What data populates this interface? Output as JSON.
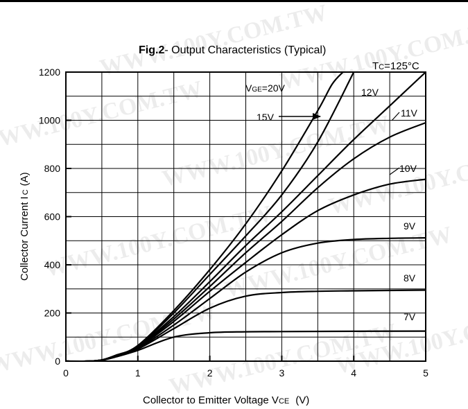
{
  "watermark": "WWW.100Y.COM.TW",
  "chart_data": {
    "type": "line",
    "title_bold": "Fig.2",
    "title_rest": "- Output Characteristics (Typical)",
    "xlabel_main": "Collector to Emitter Voltage V",
    "xlabel_sub": "CE",
    "xlabel_unit": "(V)",
    "ylabel_main": "Collector Current I",
    "ylabel_sub": "C",
    "ylabel_unit": "(A)",
    "xlim": [
      0,
      5
    ],
    "ylim": [
      0,
      1200
    ],
    "x_ticks": [
      "0",
      "1",
      "2",
      "3",
      "4",
      "5"
    ],
    "y_ticks": [
      "0",
      "200",
      "400",
      "600",
      "800",
      "1000",
      "1200"
    ],
    "grid": true,
    "annotation_main": "T",
    "annotation_sub": "C",
    "annotation_rest": "=125°C",
    "series": [
      {
        "name": "VGE=20V",
        "label_main": "V",
        "label_sub": "GE",
        "label_rest": "=20V",
        "points": [
          [
            0,
            0
          ],
          [
            0.3,
            0
          ],
          [
            0.5,
            5
          ],
          [
            0.7,
            25
          ],
          [
            1.0,
            65
          ],
          [
            1.5,
            210
          ],
          [
            2.0,
            380
          ],
          [
            2.5,
            570
          ],
          [
            3.0,
            790
          ],
          [
            3.5,
            1040
          ],
          [
            3.7,
            1150
          ],
          [
            3.85,
            1200
          ]
        ]
      },
      {
        "name": "15V",
        "label_main": "15V",
        "label_sub": "",
        "label_rest": "",
        "points": [
          [
            0,
            0
          ],
          [
            0.3,
            0
          ],
          [
            0.5,
            5
          ],
          [
            0.7,
            25
          ],
          [
            1.0,
            62
          ],
          [
            1.5,
            200
          ],
          [
            2.0,
            360
          ],
          [
            2.5,
            520
          ],
          [
            3.0,
            690
          ],
          [
            3.5,
            910
          ],
          [
            4.0,
            1200
          ]
        ]
      },
      {
        "name": "12V",
        "label_main": "12V",
        "label_sub": "",
        "label_rest": "",
        "points": [
          [
            0,
            0
          ],
          [
            0.3,
            0
          ],
          [
            0.5,
            5
          ],
          [
            0.7,
            24
          ],
          [
            1.0,
            60
          ],
          [
            1.5,
            185
          ],
          [
            2.0,
            330
          ],
          [
            2.5,
            480
          ],
          [
            3.0,
            620
          ],
          [
            3.5,
            770
          ],
          [
            4.0,
            920
          ],
          [
            4.5,
            1060
          ],
          [
            5.0,
            1200
          ]
        ]
      },
      {
        "name": "11V",
        "label_main": "11V",
        "label_sub": "",
        "label_rest": "",
        "points": [
          [
            0,
            0
          ],
          [
            0.3,
            0
          ],
          [
            0.5,
            5
          ],
          [
            0.7,
            23
          ],
          [
            1.0,
            58
          ],
          [
            1.5,
            175
          ],
          [
            2.0,
            310
          ],
          [
            2.5,
            450
          ],
          [
            3.0,
            580
          ],
          [
            3.5,
            720
          ],
          [
            4.0,
            840
          ],
          [
            4.5,
            930
          ],
          [
            5.0,
            990
          ]
        ]
      },
      {
        "name": "10V",
        "label_main": "10V",
        "label_sub": "",
        "label_rest": "",
        "points": [
          [
            0,
            0
          ],
          [
            0.3,
            0
          ],
          [
            0.5,
            5
          ],
          [
            0.7,
            22
          ],
          [
            1.0,
            56
          ],
          [
            1.5,
            165
          ],
          [
            2.0,
            290
          ],
          [
            2.5,
            410
          ],
          [
            3.0,
            525
          ],
          [
            3.5,
            625
          ],
          [
            4.0,
            690
          ],
          [
            4.5,
            735
          ],
          [
            5.0,
            755
          ]
        ]
      },
      {
        "name": "9V",
        "label_main": "9V",
        "label_sub": "",
        "label_rest": "",
        "points": [
          [
            0,
            0
          ],
          [
            0.3,
            0
          ],
          [
            0.5,
            5
          ],
          [
            0.7,
            21
          ],
          [
            1.0,
            53
          ],
          [
            1.5,
            150
          ],
          [
            2.0,
            260
          ],
          [
            2.5,
            370
          ],
          [
            3.0,
            450
          ],
          [
            3.5,
            490
          ],
          [
            4.0,
            505
          ],
          [
            4.5,
            510
          ],
          [
            5.0,
            512
          ]
        ]
      },
      {
        "name": "8V",
        "label_main": "8V",
        "label_sub": "",
        "label_rest": "",
        "points": [
          [
            0,
            0
          ],
          [
            0.3,
            0
          ],
          [
            0.5,
            5
          ],
          [
            0.7,
            20
          ],
          [
            1.0,
            50
          ],
          [
            1.5,
            135
          ],
          [
            2.0,
            220
          ],
          [
            2.5,
            270
          ],
          [
            3.0,
            285
          ],
          [
            3.5,
            290
          ],
          [
            4.0,
            292
          ],
          [
            5.0,
            295
          ]
        ]
      },
      {
        "name": "7V",
        "label_main": "7V",
        "label_sub": "",
        "label_rest": "",
        "points": [
          [
            0,
            0
          ],
          [
            0.3,
            0
          ],
          [
            0.5,
            4
          ],
          [
            0.7,
            18
          ],
          [
            1.0,
            45
          ],
          [
            1.5,
            100
          ],
          [
            2.0,
            118
          ],
          [
            2.5,
            122
          ],
          [
            3.0,
            123
          ],
          [
            4.0,
            124
          ],
          [
            5.0,
            125
          ]
        ]
      }
    ]
  }
}
